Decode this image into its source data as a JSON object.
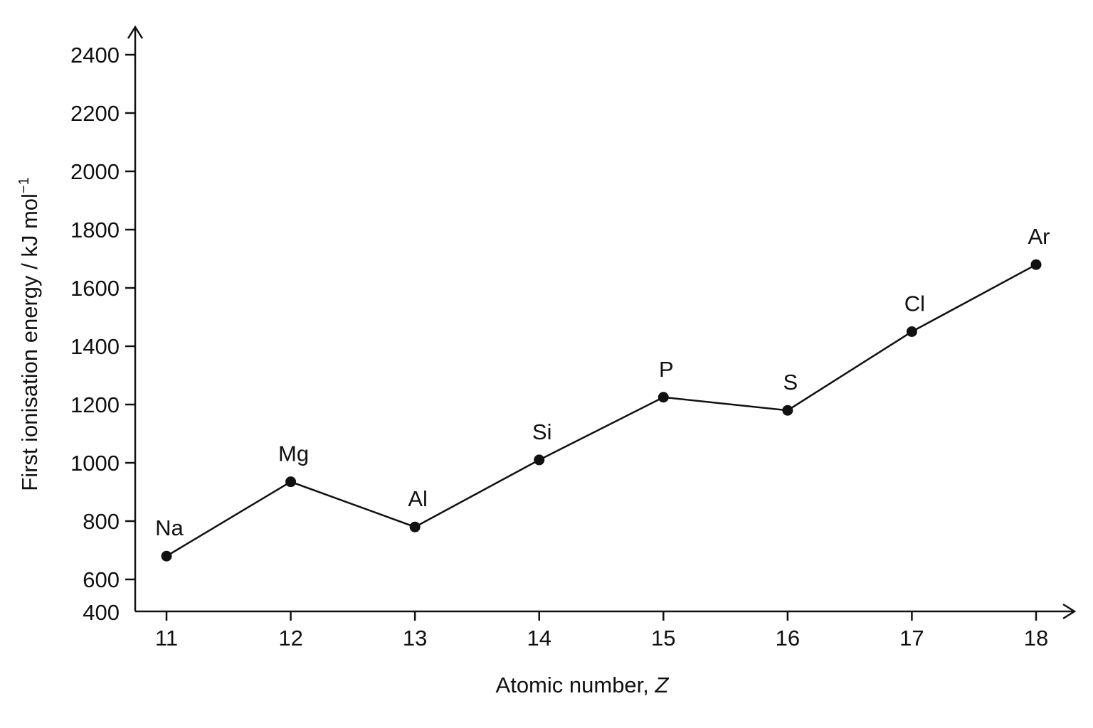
{
  "chart_data": {
    "type": "line",
    "title": "",
    "xlabel": "Atomic number, ",
    "xlabel_italic": "Z",
    "ylabel": "First ionisation energy / kJ mol",
    "ylabel_superscript": "−1",
    "x": [
      11,
      12,
      13,
      14,
      15,
      16,
      17,
      18
    ],
    "x_tick_labels": [
      "11",
      "12",
      "13",
      "14",
      "15",
      "16",
      "17",
      "18"
    ],
    "y_tick_labels": [
      "400",
      "600",
      "800",
      "1000",
      "1200",
      "1400",
      "1600",
      "1800",
      "2000",
      "2200",
      "2400"
    ],
    "y_ticks": [
      400,
      600,
      800,
      1000,
      1200,
      1400,
      1600,
      1800,
      2000,
      2200,
      2400
    ],
    "ylim": [
      400,
      2450
    ],
    "xlim": [
      10.75,
      18.3
    ],
    "grid": false,
    "series": [
      {
        "labels": [
          "Na",
          "Mg",
          "Al",
          "Si",
          "P",
          "S",
          "Cl",
          "Ar"
        ],
        "values": [
          680,
          935,
          780,
          1010,
          1225,
          1180,
          1450,
          1680
        ]
      }
    ],
    "color": "#111111"
  }
}
